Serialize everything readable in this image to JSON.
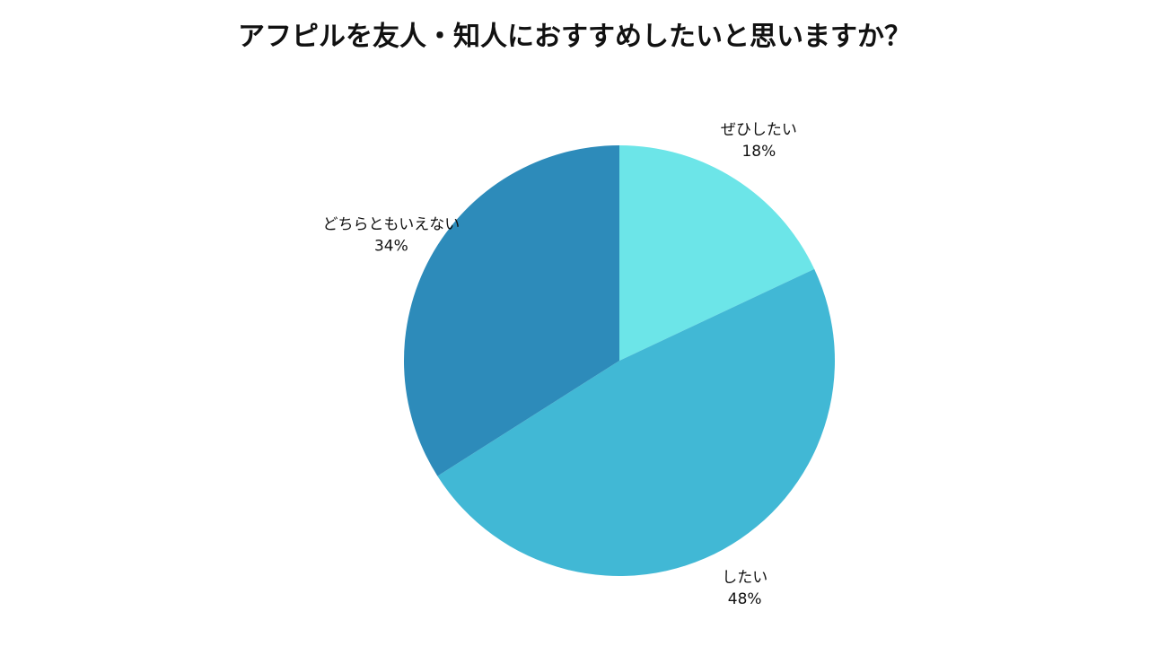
{
  "chart_data": {
    "type": "pie",
    "title": "アフピルを友人・知人におすすめしたいと思いますか？",
    "categories": [
      "ぜひしたい",
      "したい",
      "どちらともいえない"
    ],
    "values": [
      18,
      48,
      34
    ],
    "value_labels": [
      "18%",
      "48%",
      "34%"
    ],
    "colors": [
      "#6ce5e8",
      "#41b8d5",
      "#2d8bba"
    ]
  }
}
